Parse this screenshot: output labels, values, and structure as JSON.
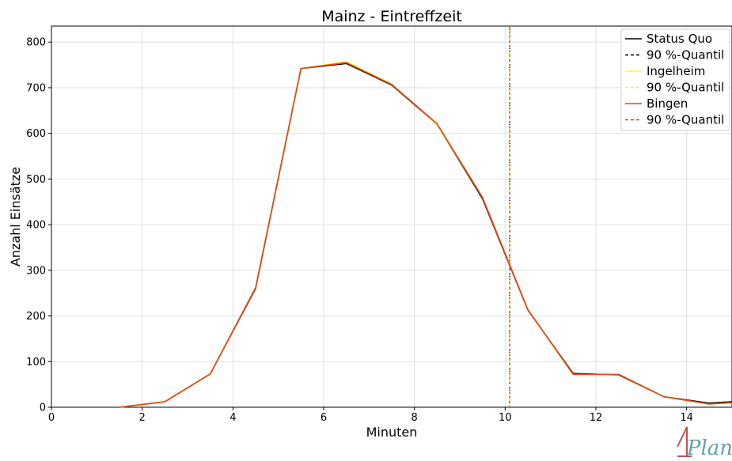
{
  "chart_data": {
    "type": "line",
    "title": "Mainz - Eintreffzeit",
    "xlabel": "Minuten",
    "ylabel": "Anzahl Einsätze",
    "xlim": [
      0,
      15
    ],
    "ylim": [
      0,
      835
    ],
    "xticks": [
      0,
      2,
      4,
      6,
      8,
      10,
      12,
      14
    ],
    "yticks": [
      0,
      100,
      200,
      300,
      400,
      500,
      600,
      700,
      800
    ],
    "grid": true,
    "legend_position": "top-right",
    "x": [
      1.5,
      2.5,
      3.5,
      4.5,
      5.5,
      6.5,
      7.5,
      8.5,
      9.5,
      10.5,
      11.5,
      12.5,
      13.5,
      14.5,
      15
    ],
    "series": [
      {
        "name": "Status Quo",
        "color": "#000000",
        "values": [
          0,
          12,
          73,
          260,
          742,
          753,
          706,
          620,
          457,
          213,
          74,
          71,
          23,
          9,
          12
        ]
      },
      {
        "name": "Ingelheim",
        "color": "#ffff00",
        "values": [
          0,
          12,
          73,
          262,
          742,
          757,
          708,
          620,
          460,
          214,
          72,
          72,
          23,
          7,
          10
        ]
      },
      {
        "name": "Bingen",
        "color": "#e8431a",
        "values": [
          0,
          12,
          73,
          262,
          742,
          755,
          707,
          621,
          460,
          214,
          72,
          72,
          23,
          7,
          10
        ]
      }
    ],
    "quantiles": [
      {
        "name": "90 %-Quantil",
        "color": "#000000",
        "x": 10.1
      },
      {
        "name": "90 %-Quantil",
        "color": "#ffff00",
        "x": 10.1
      },
      {
        "name": "90 %-Quantil",
        "color": "#e8431a",
        "x": 10.1
      }
    ],
    "legend": [
      "Status Quo",
      "90 %-Quantil",
      "Ingelheim",
      "90 %-Quantil",
      "Bingen",
      "90 %-Quantil"
    ]
  },
  "logo": {
    "text": "1Plan",
    "color": "#5f9fba",
    "accent": "#c0504d"
  }
}
